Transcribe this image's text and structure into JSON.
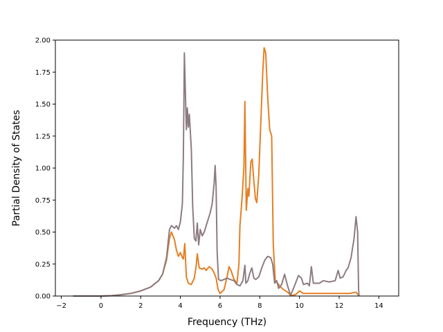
{
  "chart_data": {
    "type": "line",
    "title": "",
    "xlabel": "Frequency (THz)",
    "ylabel": "Partial Density of States",
    "xlim": [
      -2.3,
      15.0
    ],
    "ylim": [
      0.0,
      2.0
    ],
    "xticks": [
      -2,
      0,
      2,
      4,
      6,
      8,
      10,
      12,
      14
    ],
    "xtick_labels": [
      "−2",
      "0",
      "2",
      "4",
      "6",
      "8",
      "10",
      "12",
      "14"
    ],
    "yticks": [
      0.0,
      0.25,
      0.5,
      0.75,
      1.0,
      1.25,
      1.5,
      1.75,
      2.0
    ],
    "ytick_labels": [
      "0.00",
      "0.25",
      "0.50",
      "0.75",
      "1.00",
      "1.25",
      "1.50",
      "1.75",
      "2.00"
    ],
    "grid": false,
    "legend": "none",
    "series": [
      {
        "color": "#e67e22",
        "points": [
          [
            -1.4,
            0.0
          ],
          [
            0.0,
            0.0
          ],
          [
            0.5,
            0.003
          ],
          [
            1.0,
            0.01
          ],
          [
            1.5,
            0.02
          ],
          [
            2.0,
            0.04
          ],
          [
            2.5,
            0.07
          ],
          [
            2.9,
            0.12
          ],
          [
            3.1,
            0.17
          ],
          [
            3.3,
            0.28
          ],
          [
            3.45,
            0.45
          ],
          [
            3.55,
            0.5
          ],
          [
            3.7,
            0.44
          ],
          [
            3.8,
            0.36
          ],
          [
            3.9,
            0.31
          ],
          [
            4.0,
            0.34
          ],
          [
            4.1,
            0.3
          ],
          [
            4.15,
            0.29
          ],
          [
            4.22,
            0.41
          ],
          [
            4.3,
            0.15
          ],
          [
            4.4,
            0.1
          ],
          [
            4.55,
            0.09
          ],
          [
            4.7,
            0.14
          ],
          [
            4.8,
            0.24
          ],
          [
            4.85,
            0.33
          ],
          [
            4.95,
            0.22
          ],
          [
            5.1,
            0.21
          ],
          [
            5.2,
            0.22
          ],
          [
            5.3,
            0.2
          ],
          [
            5.45,
            0.23
          ],
          [
            5.6,
            0.21
          ],
          [
            5.7,
            0.18
          ],
          [
            5.8,
            0.14
          ],
          [
            5.9,
            0.05
          ],
          [
            6.0,
            0.02
          ],
          [
            6.2,
            0.05
          ],
          [
            6.35,
            0.15
          ],
          [
            6.45,
            0.23
          ],
          [
            6.55,
            0.2
          ],
          [
            6.7,
            0.13
          ],
          [
            6.85,
            0.1
          ],
          [
            6.95,
            0.25
          ],
          [
            7.0,
            0.55
          ],
          [
            7.1,
            0.75
          ],
          [
            7.2,
            1.0
          ],
          [
            7.25,
            1.52
          ],
          [
            7.32,
            0.67
          ],
          [
            7.4,
            0.84
          ],
          [
            7.45,
            0.78
          ],
          [
            7.55,
            1.05
          ],
          [
            7.62,
            1.07
          ],
          [
            7.7,
            0.9
          ],
          [
            7.78,
            0.76
          ],
          [
            7.85,
            0.73
          ],
          [
            7.95,
            0.95
          ],
          [
            8.05,
            1.35
          ],
          [
            8.15,
            1.75
          ],
          [
            8.22,
            1.94
          ],
          [
            8.3,
            1.9
          ],
          [
            8.4,
            1.55
          ],
          [
            8.5,
            1.3
          ],
          [
            8.6,
            1.25
          ],
          [
            8.68,
            0.4
          ],
          [
            8.78,
            0.12
          ],
          [
            8.9,
            0.1
          ],
          [
            9.05,
            0.07
          ],
          [
            9.2,
            0.05
          ],
          [
            9.4,
            0.03
          ],
          [
            9.55,
            0.005
          ],
          [
            9.8,
            0.01
          ],
          [
            10.0,
            0.04
          ],
          [
            10.2,
            0.02
          ],
          [
            10.5,
            0.02
          ],
          [
            11.0,
            0.02
          ],
          [
            11.5,
            0.02
          ],
          [
            12.0,
            0.02
          ],
          [
            12.5,
            0.02
          ],
          [
            12.85,
            0.03
          ],
          [
            13.0,
            0.0
          ]
        ]
      },
      {
        "color": "#8c7b80",
        "points": [
          [
            -1.4,
            0.0
          ],
          [
            0.0,
            0.0
          ],
          [
            0.5,
            0.003
          ],
          [
            1.0,
            0.01
          ],
          [
            1.5,
            0.02
          ],
          [
            2.0,
            0.04
          ],
          [
            2.5,
            0.07
          ],
          [
            2.9,
            0.12
          ],
          [
            3.1,
            0.17
          ],
          [
            3.3,
            0.3
          ],
          [
            3.45,
            0.52
          ],
          [
            3.55,
            0.55
          ],
          [
            3.7,
            0.53
          ],
          [
            3.8,
            0.55
          ],
          [
            3.9,
            0.52
          ],
          [
            4.0,
            0.58
          ],
          [
            4.1,
            0.72
          ],
          [
            4.15,
            1.1
          ],
          [
            4.2,
            1.9
          ],
          [
            4.25,
            1.6
          ],
          [
            4.3,
            1.3
          ],
          [
            4.35,
            1.47
          ],
          [
            4.4,
            1.32
          ],
          [
            4.45,
            1.42
          ],
          [
            4.55,
            1.15
          ],
          [
            4.62,
            0.7
          ],
          [
            4.7,
            0.45
          ],
          [
            4.78,
            0.43
          ],
          [
            4.85,
            0.57
          ],
          [
            4.92,
            0.4
          ],
          [
            5.0,
            0.52
          ],
          [
            5.1,
            0.47
          ],
          [
            5.2,
            0.5
          ],
          [
            5.3,
            0.55
          ],
          [
            5.4,
            0.6
          ],
          [
            5.5,
            0.65
          ],
          [
            5.6,
            0.72
          ],
          [
            5.7,
            0.88
          ],
          [
            5.75,
            1.02
          ],
          [
            5.8,
            0.85
          ],
          [
            5.85,
            0.35
          ],
          [
            5.92,
            0.13
          ],
          [
            6.05,
            0.12
          ],
          [
            6.2,
            0.13
          ],
          [
            6.35,
            0.14
          ],
          [
            6.5,
            0.13
          ],
          [
            6.7,
            0.12
          ],
          [
            6.85,
            0.09
          ],
          [
            7.0,
            0.08
          ],
          [
            7.15,
            0.12
          ],
          [
            7.25,
            0.24
          ],
          [
            7.3,
            0.1
          ],
          [
            7.4,
            0.12
          ],
          [
            7.5,
            0.18
          ],
          [
            7.6,
            0.22
          ],
          [
            7.7,
            0.14
          ],
          [
            7.8,
            0.13
          ],
          [
            7.95,
            0.15
          ],
          [
            8.1,
            0.22
          ],
          [
            8.25,
            0.28
          ],
          [
            8.4,
            0.31
          ],
          [
            8.55,
            0.3
          ],
          [
            8.65,
            0.25
          ],
          [
            8.75,
            0.1
          ],
          [
            8.85,
            0.12
          ],
          [
            8.95,
            0.06
          ],
          [
            9.1,
            0.09
          ],
          [
            9.25,
            0.17
          ],
          [
            9.4,
            0.08
          ],
          [
            9.55,
            0.005
          ],
          [
            9.75,
            0.08
          ],
          [
            9.95,
            0.16
          ],
          [
            10.1,
            0.14
          ],
          [
            10.2,
            0.09
          ],
          [
            10.4,
            0.1
          ],
          [
            10.5,
            0.08
          ],
          [
            10.6,
            0.23
          ],
          [
            10.7,
            0.1
          ],
          [
            10.85,
            0.1
          ],
          [
            11.0,
            0.1
          ],
          [
            11.2,
            0.12
          ],
          [
            11.5,
            0.11
          ],
          [
            11.8,
            0.12
          ],
          [
            11.95,
            0.2
          ],
          [
            12.05,
            0.14
          ],
          [
            12.2,
            0.15
          ],
          [
            12.35,
            0.2
          ],
          [
            12.45,
            0.22
          ],
          [
            12.6,
            0.3
          ],
          [
            12.75,
            0.45
          ],
          [
            12.85,
            0.62
          ],
          [
            12.93,
            0.5
          ],
          [
            12.98,
            0.05
          ],
          [
            13.0,
            0.0
          ]
        ]
      }
    ]
  }
}
